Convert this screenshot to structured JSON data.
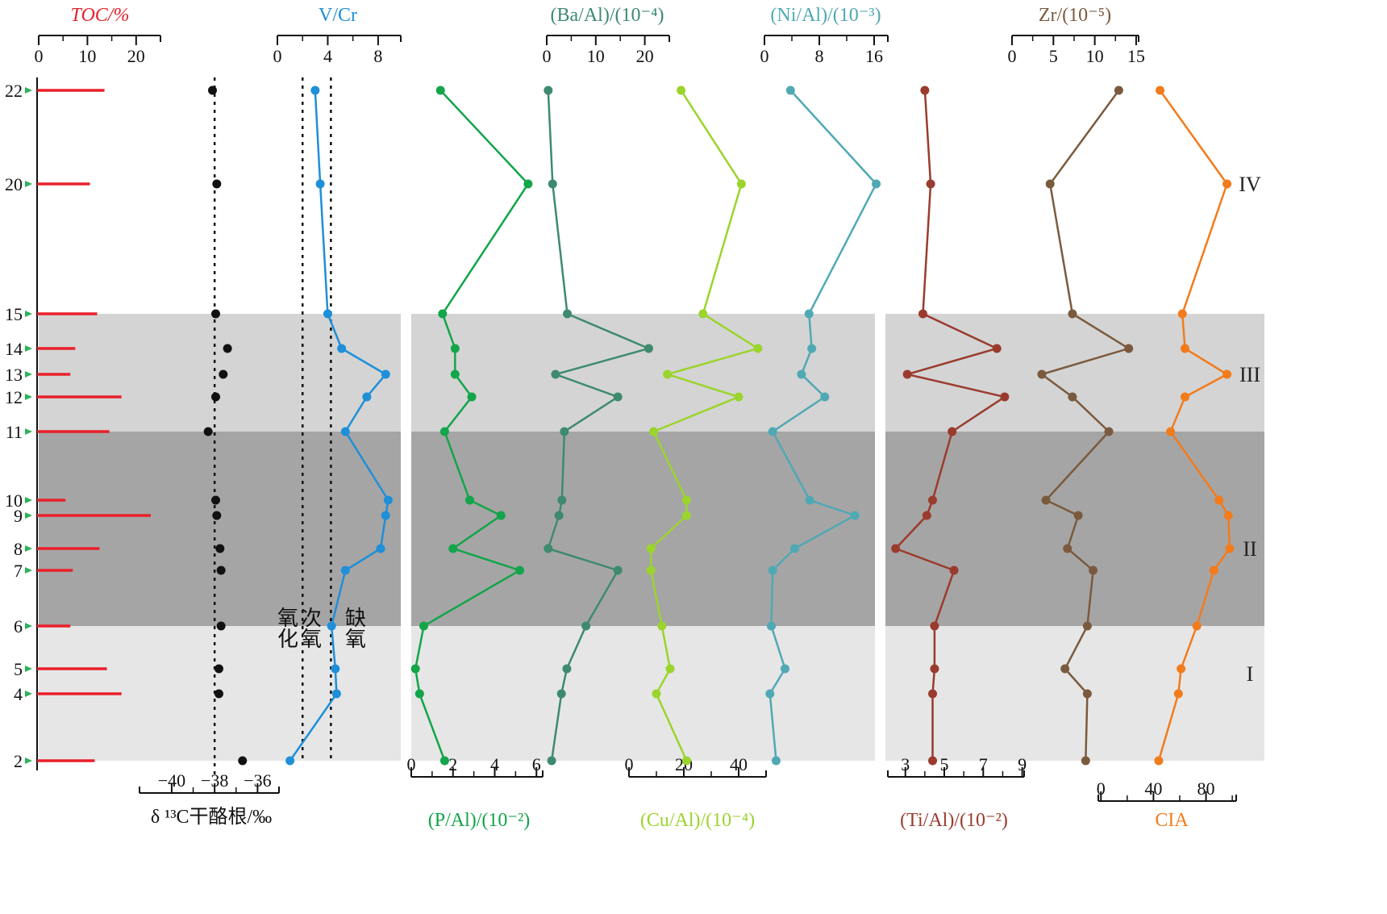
{
  "chart_data": {
    "type": "line",
    "title": "",
    "depth_ticks": [
      "2",
      "4",
      "5",
      "6",
      "7",
      "8",
      "9",
      "10",
      "11",
      "12",
      "13",
      "14",
      "15",
      "20",
      "22"
    ],
    "zones": [
      {
        "label": "IV",
        "from": 15,
        "to": 23
      },
      {
        "label": "III",
        "from": 11,
        "to": 15
      },
      {
        "label": "II",
        "from": 6,
        "to": 11
      },
      {
        "label": "I",
        "from": 2,
        "to": 6
      }
    ],
    "threshold_labels": {
      "oxic": "氧化",
      "suboxic": "次氧",
      "anoxic": "缺氧"
    },
    "threshold_values": {
      "oxic_suboxic": 2,
      "suboxic_anoxic": 4.25
    },
    "toc_reference_value": -38,
    "panels": {
      "toc": {
        "title": "TOC/%",
        "color": "#e8202a",
        "ticks": [
          "0",
          "10",
          "20"
        ],
        "range": [
          0,
          25
        ],
        "points": [
          [
            22,
            13.5
          ],
          [
            20,
            10.5
          ],
          [
            15,
            12
          ],
          [
            14,
            7.5
          ],
          [
            13,
            6.5
          ],
          [
            12,
            17
          ],
          [
            11,
            14.5
          ],
          [
            10,
            5.5
          ],
          [
            9,
            23
          ],
          [
            8,
            12.5
          ],
          [
            7,
            7
          ],
          [
            6,
            6.5
          ],
          [
            5,
            14
          ],
          [
            4,
            17
          ],
          [
            2,
            11.5
          ]
        ]
      },
      "d13c": {
        "title": "δ ¹³C干酪根/‰",
        "color": "#111111",
        "ticks": [
          "−40",
          "−38",
          "−36"
        ],
        "range": [
          -41.5,
          -35
        ],
        "points": [
          [
            22,
            -38.1
          ],
          [
            20,
            -37.9
          ],
          [
            15,
            -37.95
          ],
          [
            14,
            -37.4
          ],
          [
            13,
            -37.6
          ],
          [
            12,
            -37.95
          ],
          [
            11,
            -38.3
          ],
          [
            10,
            -37.95
          ],
          [
            9,
            -37.9
          ],
          [
            8,
            -37.75
          ],
          [
            7,
            -37.7
          ],
          [
            6,
            -37.7
          ],
          [
            5,
            -37.8
          ],
          [
            4,
            -37.8
          ],
          [
            2,
            -36.7
          ]
        ]
      },
      "vcr": {
        "title": "V/Cr",
        "color": "#1e8fd8",
        "ticks": [
          "0",
          "4",
          "8"
        ],
        "range": [
          0,
          9.8
        ],
        "points": [
          [
            22,
            3.0
          ],
          [
            20,
            3.4
          ],
          [
            15,
            4.0
          ],
          [
            14,
            5.1
          ],
          [
            13,
            8.6
          ],
          [
            12,
            7.1
          ],
          [
            11,
            5.4
          ],
          [
            10,
            8.8
          ],
          [
            9,
            8.6
          ],
          [
            8,
            8.2
          ],
          [
            7,
            5.4
          ],
          [
            6,
            4.3
          ],
          [
            5,
            4.6
          ],
          [
            4,
            4.7
          ],
          [
            2,
            1.0
          ]
        ]
      },
      "pal": {
        "title": "(P/Al)/(10⁻²)",
        "color": "#12a54a",
        "ticks": [
          "0",
          "2",
          "4",
          "6"
        ],
        "range": [
          0,
          6.3
        ],
        "points": [
          [
            22,
            1.4
          ],
          [
            20,
            5.6
          ],
          [
            15,
            1.5
          ],
          [
            14,
            2.1
          ],
          [
            13,
            2.1
          ],
          [
            12,
            2.9
          ],
          [
            11,
            1.6
          ],
          [
            10,
            2.8
          ],
          [
            9,
            4.3
          ],
          [
            8,
            2.0
          ],
          [
            7,
            5.2
          ],
          [
            6,
            0.6
          ],
          [
            5,
            0.2
          ],
          [
            4,
            0.4
          ],
          [
            2,
            1.6
          ]
        ]
      },
      "baal": {
        "title": "(Ba/Al)/(10⁻⁴)",
        "color": "#3e8a6e",
        "ticks": [
          "0",
          "10",
          "20"
        ],
        "range": [
          0,
          25
        ],
        "points": [
          [
            22,
            0.3
          ],
          [
            20,
            1.2
          ],
          [
            15,
            4.2
          ],
          [
            14,
            20.8
          ],
          [
            13,
            1.8
          ],
          [
            12,
            14.5
          ],
          [
            11,
            3.6
          ],
          [
            10,
            3.1
          ],
          [
            9,
            2.5
          ],
          [
            8,
            0.3
          ],
          [
            7,
            14.5
          ],
          [
            6,
            8.0
          ],
          [
            5,
            4.1
          ],
          [
            4,
            3.0
          ],
          [
            2,
            1.0
          ]
        ]
      },
      "cual": {
        "title": "(Cu/Al)/(10⁻⁴)",
        "color": "#9bd42c",
        "ticks": [
          "0",
          "20",
          "40"
        ],
        "range": [
          0,
          50
        ],
        "points": [
          [
            22,
            19
          ],
          [
            20,
            41
          ],
          [
            15,
            27
          ],
          [
            14,
            47
          ],
          [
            13,
            14
          ],
          [
            12,
            40
          ],
          [
            11,
            9
          ],
          [
            10,
            21
          ],
          [
            9,
            21
          ],
          [
            8,
            8
          ],
          [
            7,
            8
          ],
          [
            6,
            12
          ],
          [
            5,
            15
          ],
          [
            4,
            10
          ],
          [
            2,
            21
          ]
        ]
      },
      "nial": {
        "title": "(Ni/Al)/(10⁻³)",
        "color": "#4fa9b4",
        "ticks": [
          "0",
          "8",
          "16"
        ],
        "range": [
          0,
          18
        ],
        "points": [
          [
            22,
            3.8
          ],
          [
            20,
            16.3
          ],
          [
            15,
            6.5
          ],
          [
            14,
            6.9
          ],
          [
            13,
            5.4
          ],
          [
            12,
            8.8
          ],
          [
            11,
            1.2
          ],
          [
            10,
            6.6
          ],
          [
            9,
            13.2
          ],
          [
            8,
            4.4
          ],
          [
            7,
            1.2
          ],
          [
            6,
            1.0
          ],
          [
            5,
            3.0
          ],
          [
            4,
            0.8
          ],
          [
            2,
            1.7
          ]
        ]
      },
      "tial": {
        "title": "(Ti/Al)/(10⁻²)",
        "color": "#9a3b2e",
        "ticks": [
          "3",
          "5",
          "7",
          "9"
        ],
        "range": [
          2.1,
          9.1
        ],
        "points": [
          [
            22,
            4.0
          ],
          [
            20,
            4.3
          ],
          [
            15,
            3.9
          ],
          [
            14,
            7.7
          ],
          [
            13,
            3.1
          ],
          [
            12,
            8.1
          ],
          [
            11,
            5.4
          ],
          [
            10,
            4.4
          ],
          [
            9,
            4.1
          ],
          [
            8,
            2.5
          ],
          [
            7,
            5.5
          ],
          [
            6,
            4.5
          ],
          [
            5,
            4.5
          ],
          [
            4,
            4.4
          ],
          [
            2,
            4.4
          ]
        ]
      },
      "zr": {
        "title": "Zr/(10⁻⁵)",
        "color": "#7a5a3e",
        "ticks": [
          "0",
          "5",
          "10",
          "15"
        ],
        "range": [
          0,
          15.3
        ],
        "points": [
          [
            22,
            12.9
          ],
          [
            20,
            4.6
          ],
          [
            15,
            7.3
          ],
          [
            14,
            14.1
          ],
          [
            13,
            3.6
          ],
          [
            12,
            7.3
          ],
          [
            11,
            11.7
          ],
          [
            10,
            4.1
          ],
          [
            9,
            8.0
          ],
          [
            8,
            6.7
          ],
          [
            7,
            9.8
          ],
          [
            6,
            9.1
          ],
          [
            5,
            6.4
          ],
          [
            4,
            9.1
          ],
          [
            2,
            8.9
          ]
        ]
      },
      "cia": {
        "title": "CIA",
        "color": "#f27b1c",
        "ticks": [
          "0",
          "40",
          "80"
        ],
        "range": [
          -2,
          103
        ],
        "points": [
          [
            22,
            45
          ],
          [
            20,
            96
          ],
          [
            15,
            62
          ],
          [
            14,
            64
          ],
          [
            13,
            96
          ],
          [
            12,
            64
          ],
          [
            11,
            53
          ],
          [
            10,
            90
          ],
          [
            9,
            97
          ],
          [
            8,
            98
          ],
          [
            7,
            86
          ],
          [
            6,
            73
          ],
          [
            5,
            61
          ],
          [
            4,
            59
          ],
          [
            2,
            44
          ]
        ]
      }
    }
  }
}
